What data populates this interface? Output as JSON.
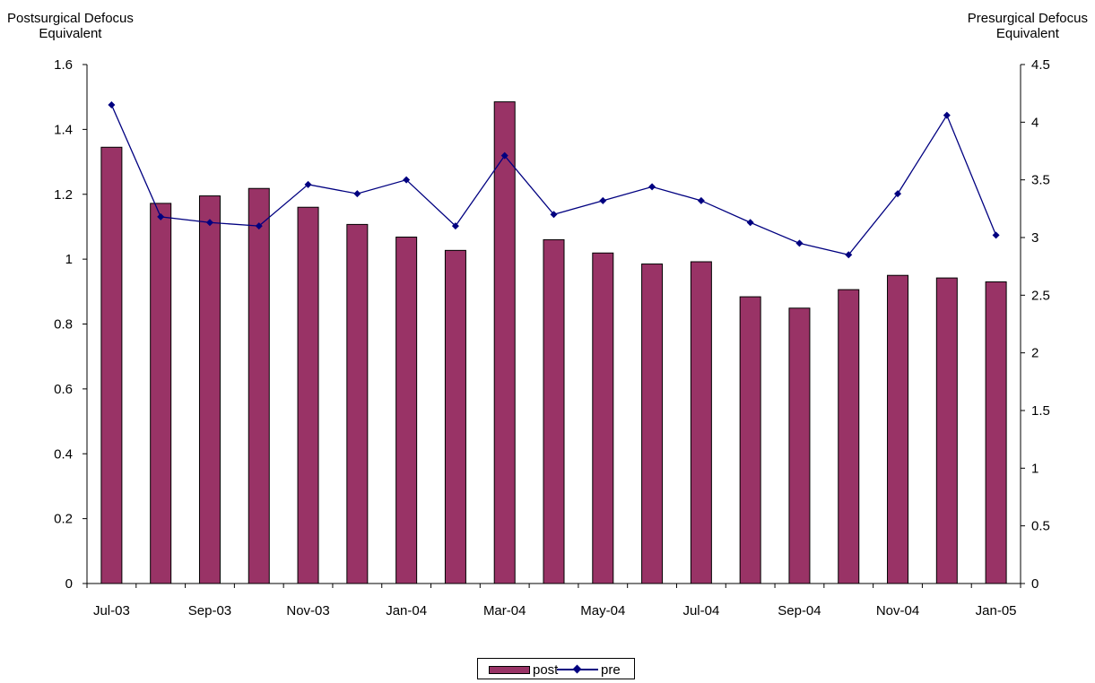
{
  "chart_data": {
    "type": "bar",
    "categories": [
      "Jul-03",
      "Aug-03",
      "Sep-03",
      "Oct-03",
      "Nov-03",
      "Dec-03",
      "Jan-04",
      "Feb-04",
      "Mar-04",
      "Apr-04",
      "May-04",
      "Jun-04",
      "Jul-04",
      "Aug-04",
      "Sep-04",
      "Oct-04",
      "Nov-04",
      "Dec-04",
      "Jan-05"
    ],
    "x_tick_labels": [
      "Jul-03",
      "",
      "Sep-03",
      "",
      "Nov-03",
      "",
      "Jan-04",
      "",
      "Mar-04",
      "",
      "May-04",
      "",
      "Jul-04",
      "",
      "Sep-04",
      "",
      "Nov-04",
      "",
      "Jan-05"
    ],
    "series": [
      {
        "name": "post",
        "type": "bar",
        "axis": "left",
        "color": "#993366",
        "values": [
          1.345,
          1.172,
          1.195,
          1.218,
          1.16,
          1.107,
          1.068,
          1.027,
          1.485,
          1.06,
          1.019,
          0.985,
          0.992,
          0.884,
          0.849,
          0.906,
          0.95,
          0.942,
          0.93
        ]
      },
      {
        "name": "pre",
        "type": "line",
        "axis": "right",
        "color": "#000080",
        "marker": "diamond",
        "values": [
          4.15,
          3.18,
          3.13,
          3.1,
          3.46,
          3.38,
          3.5,
          3.1,
          3.71,
          3.2,
          3.32,
          3.44,
          3.32,
          3.13,
          2.95,
          2.85,
          3.38,
          4.06,
          3.02
        ]
      }
    ],
    "ylabel": "Postsurgical Defocus\nEquivalent",
    "ylabel_right": "Presurgical Defocus\nEquivalent",
    "ylim": [
      0,
      1.6
    ],
    "ylim_right": [
      0,
      4.5
    ],
    "yticks": [
      "0",
      "0.2",
      "0.4",
      "0.6",
      "0.8",
      "1",
      "1.2",
      "1.4",
      "1.6"
    ],
    "yticks_right": [
      "0",
      "0.5",
      "1",
      "1.5",
      "2",
      "2.5",
      "3",
      "3.5",
      "4",
      "4.5"
    ],
    "grid": false,
    "legend_position": "bottom"
  }
}
